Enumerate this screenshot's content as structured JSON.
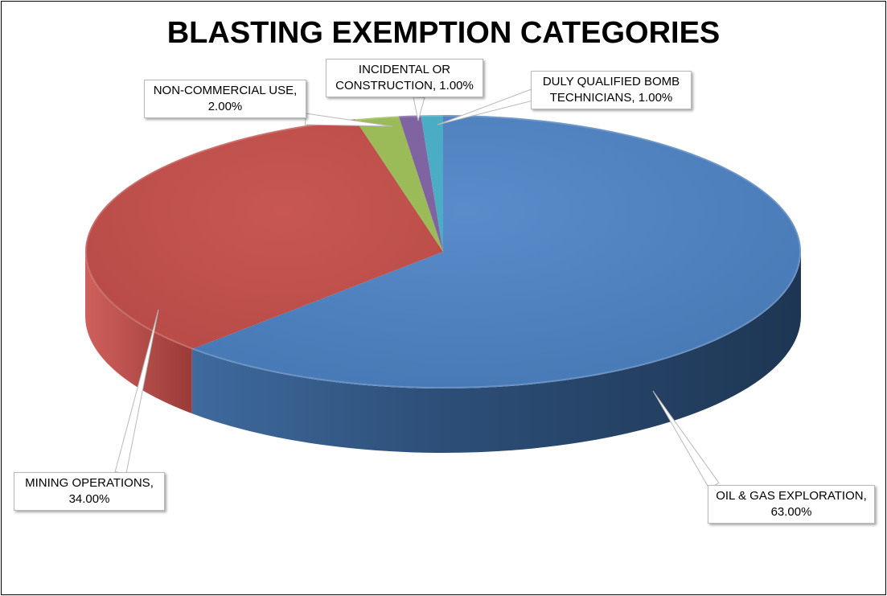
{
  "chart_data": {
    "type": "pie",
    "title": "BLASTING EXEMPTION CATEGORIES",
    "slices": [
      {
        "name": "OIL & GAS EXPLORATION",
        "value": 63.0,
        "label": "63.00%",
        "color": "#4f81bd"
      },
      {
        "name": "MINING OPERATIONS",
        "value": 34.0,
        "label": "34.00%",
        "color": "#c0504d"
      },
      {
        "name": "NON-COMMERCIAL USE",
        "value": 2.0,
        "label": "2.00%",
        "color": "#9bbb59"
      },
      {
        "name": "INCIDENTAL OR CONSTRUCTION",
        "value": 1.0,
        "label": "1.00%",
        "color": "#8064a2"
      },
      {
        "name": "DULY QUALIFIED BOMB TECHNICIANS",
        "value": 1.0,
        "label": "1.00%",
        "color": "#4bacc6"
      }
    ],
    "style": "3d",
    "legend": "none"
  },
  "labels": {
    "oil_gas_line1": "OIL & GAS EXPLORATION,",
    "oil_gas_line2": "63.00%",
    "mining_line1": "MINING OPERATIONS,",
    "mining_line2": "34.00%",
    "noncommercial_line1": "NON-COMMERCIAL USE,",
    "noncommercial_line2": "2.00%",
    "incidental_line1": "INCIDENTAL OR",
    "incidental_line2": "CONSTRUCTION, 1.00%",
    "bomb_line1": "DULY QUALIFIED BOMB",
    "bomb_line2": "TECHNICIANS, 1.00%"
  }
}
